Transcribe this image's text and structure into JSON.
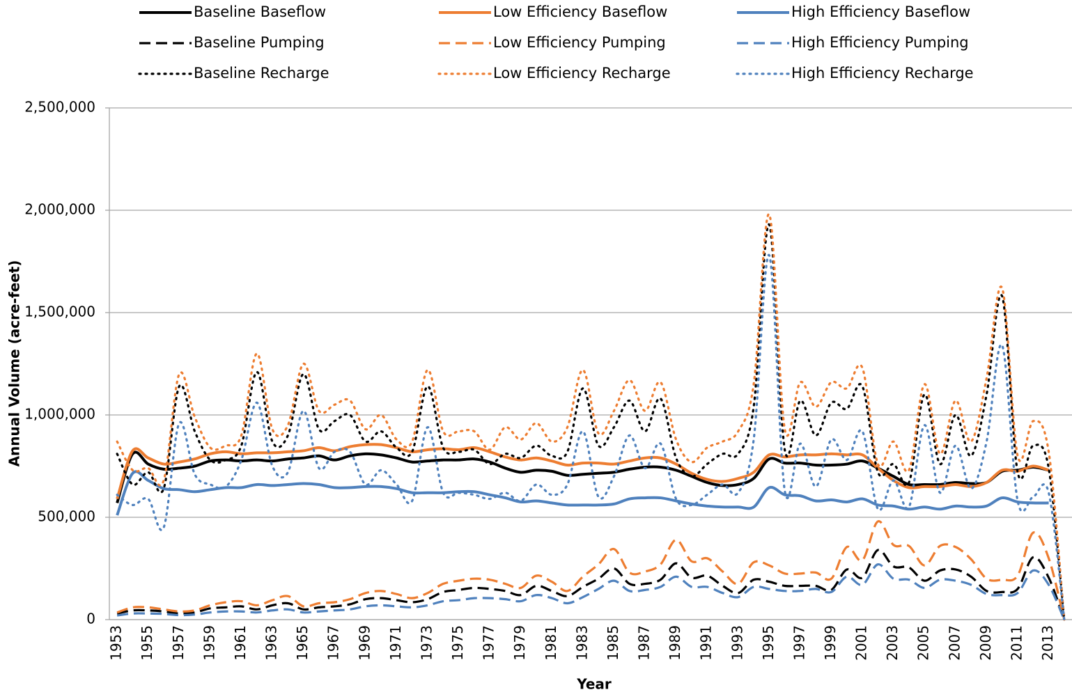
{
  "chart_data": {
    "type": "line",
    "y_label": "Annual Volume (acre-feet)",
    "x_label": "Year",
    "categories": [
      "1953",
      null,
      "1955",
      null,
      "1957",
      null,
      "1959",
      null,
      "1961",
      null,
      "1963",
      null,
      "1965",
      null,
      "1967",
      null,
      "1969",
      null,
      "1971",
      null,
      "1973",
      null,
      "1975",
      null,
      "1977",
      null,
      "1979",
      null,
      "1981",
      null,
      "1983",
      null,
      "1985",
      null,
      "1987",
      null,
      "1989",
      null,
      "1991",
      null,
      "1993",
      null,
      "1995",
      null,
      "1997",
      null,
      "1999",
      null,
      "2001",
      null,
      "2003",
      null,
      "2005",
      null,
      "2007",
      null,
      "2009",
      null,
      "2011",
      null,
      "2013",
      null
    ],
    "ylim": [
      0,
      2500000
    ],
    "yticks": [
      0,
      {
        "value": 500000,
        "label": "500,000"
      },
      {
        "value": 1000000,
        "label": "1,000,000"
      },
      {
        "value": 1500000,
        "label": "1,500,000"
      },
      {
        "value": 2000000,
        "label": "2,000,000"
      },
      {
        "value": 2500000,
        "label": "2,500,000"
      }
    ],
    "grid": true,
    "legend": "top",
    "series": [
      {
        "name": "Baseline Baseflow",
        "color": "#000000",
        "style": "solid",
        "values": [
          570000,
          810000,
          760000,
          735000,
          740000,
          750000,
          775000,
          780000,
          775000,
          780000,
          775000,
          785000,
          790000,
          800000,
          780000,
          800000,
          810000,
          805000,
          790000,
          770000,
          775000,
          780000,
          780000,
          785000,
          770000,
          740000,
          720000,
          730000,
          725000,
          705000,
          710000,
          715000,
          720000,
          735000,
          745000,
          745000,
          730000,
          700000,
          670000,
          655000,
          660000,
          690000,
          785000,
          765000,
          765000,
          755000,
          755000,
          760000,
          775000,
          740000,
          700000,
          660000,
          660000,
          660000,
          670000,
          665000,
          670000,
          725000,
          730000,
          745000,
          730000,
          null
        ]
      },
      {
        "name": "Low Efficiency Baseflow",
        "color": "#ed7d31",
        "style": "solid",
        "values": [
          590000,
          825000,
          790000,
          760000,
          770000,
          785000,
          810000,
          820000,
          810000,
          815000,
          815000,
          820000,
          825000,
          840000,
          825000,
          845000,
          855000,
          855000,
          840000,
          820000,
          830000,
          835000,
          830000,
          840000,
          820000,
          795000,
          780000,
          790000,
          775000,
          755000,
          765000,
          765000,
          760000,
          775000,
          790000,
          790000,
          760000,
          715000,
          685000,
          675000,
          690000,
          720000,
          805000,
          795000,
          805000,
          805000,
          810000,
          805000,
          805000,
          740000,
          680000,
          645000,
          650000,
          650000,
          660000,
          650000,
          670000,
          730000,
          725000,
          750000,
          730000,
          null
        ]
      },
      {
        "name": "High Efficiency Baseflow",
        "color": "#4f81bd",
        "style": "solid",
        "values": [
          510000,
          715000,
          680000,
          640000,
          635000,
          625000,
          635000,
          645000,
          645000,
          660000,
          655000,
          660000,
          665000,
          660000,
          645000,
          645000,
          650000,
          650000,
          640000,
          620000,
          620000,
          620000,
          625000,
          625000,
          610000,
          595000,
          575000,
          580000,
          570000,
          560000,
          560000,
          560000,
          565000,
          590000,
          595000,
          595000,
          580000,
          565000,
          555000,
          550000,
          550000,
          550000,
          645000,
          610000,
          605000,
          580000,
          585000,
          575000,
          590000,
          560000,
          555000,
          540000,
          550000,
          540000,
          555000,
          550000,
          555000,
          595000,
          575000,
          570000,
          570000,
          null
        ]
      },
      {
        "name": "Baseline Pumping",
        "color": "#000000",
        "style": "dash",
        "values": [
          30000,
          45000,
          45000,
          40000,
          30000,
          35000,
          55000,
          60000,
          65000,
          50000,
          70000,
          80000,
          50000,
          60000,
          65000,
          75000,
          100000,
          105000,
          95000,
          85000,
          100000,
          135000,
          145000,
          155000,
          150000,
          140000,
          120000,
          165000,
          140000,
          115000,
          160000,
          200000,
          250000,
          175000,
          175000,
          195000,
          275000,
          205000,
          215000,
          165000,
          130000,
          195000,
          185000,
          165000,
          165000,
          165000,
          145000,
          245000,
          205000,
          340000,
          260000,
          255000,
          190000,
          240000,
          245000,
          210000,
          140000,
          135000,
          150000,
          305000,
          205000,
          0
        ]
      },
      {
        "name": "Low Efficiency Pumping",
        "color": "#ed7d31",
        "style": "dash",
        "values": [
          35000,
          60000,
          60000,
          50000,
          40000,
          45000,
          70000,
          85000,
          90000,
          70000,
          95000,
          115000,
          65000,
          80000,
          85000,
          100000,
          130000,
          140000,
          125000,
          105000,
          130000,
          175000,
          190000,
          200000,
          195000,
          175000,
          155000,
          215000,
          185000,
          140000,
          210000,
          270000,
          345000,
          230000,
          235000,
          270000,
          390000,
          285000,
          300000,
          235000,
          175000,
          280000,
          265000,
          225000,
          225000,
          230000,
          200000,
          355000,
          290000,
          480000,
          365000,
          360000,
          265000,
          360000,
          355000,
          295000,
          200000,
          195000,
          215000,
          425000,
          300000,
          0
        ]
      },
      {
        "name": "High Efficiency Pumping",
        "color": "#4f81bd",
        "style": "dash",
        "values": [
          20000,
          30000,
          30000,
          28000,
          22000,
          25000,
          35000,
          40000,
          40000,
          35000,
          45000,
          50000,
          35000,
          40000,
          45000,
          50000,
          65000,
          70000,
          65000,
          60000,
          70000,
          90000,
          95000,
          105000,
          105000,
          100000,
          90000,
          120000,
          105000,
          80000,
          110000,
          150000,
          190000,
          140000,
          145000,
          160000,
          210000,
          160000,
          160000,
          130000,
          110000,
          160000,
          150000,
          140000,
          140000,
          150000,
          135000,
          210000,
          170000,
          270000,
          200000,
          195000,
          155000,
          195000,
          190000,
          170000,
          125000,
          120000,
          130000,
          240000,
          170000,
          0
        ]
      },
      {
        "name": "Baseline Recharge",
        "color": "#000000",
        "style": "dot",
        "values": [
          810000,
          660000,
          720000,
          640000,
          1140000,
          920000,
          780000,
          780000,
          850000,
          1210000,
          870000,
          900000,
          1200000,
          930000,
          970000,
          1000000,
          870000,
          920000,
          840000,
          820000,
          1140000,
          840000,
          820000,
          830000,
          760000,
          810000,
          790000,
          850000,
          800000,
          820000,
          1130000,
          850000,
          940000,
          1070000,
          920000,
          1080000,
          790000,
          700000,
          760000,
          810000,
          810000,
          1040000,
          1930000,
          830000,
          1070000,
          900000,
          1060000,
          1030000,
          1140000,
          720000,
          760000,
          670000,
          1100000,
          760000,
          1000000,
          800000,
          1100000,
          1580000,
          720000,
          850000,
          740000,
          0
        ]
      },
      {
        "name": "Low Efficiency Recharge",
        "color": "#ed7d31",
        "style": "dot",
        "values": [
          870000,
          730000,
          740000,
          680000,
          1200000,
          990000,
          840000,
          850000,
          900000,
          1300000,
          930000,
          950000,
          1250000,
          1020000,
          1050000,
          1070000,
          930000,
          1000000,
          880000,
          870000,
          1220000,
          920000,
          920000,
          920000,
          830000,
          940000,
          880000,
          960000,
          870000,
          940000,
          1220000,
          910000,
          1020000,
          1170000,
          1020000,
          1160000,
          880000,
          770000,
          840000,
          870000,
          920000,
          1150000,
          1980000,
          930000,
          1160000,
          1040000,
          1160000,
          1130000,
          1230000,
          760000,
          870000,
          730000,
          1150000,
          810000,
          1070000,
          870000,
          1180000,
          1620000,
          800000,
          970000,
          820000,
          0
        ]
      },
      {
        "name": "High Efficiency Recharge",
        "color": "#4f81bd",
        "style": "dot",
        "values": [
          610000,
          560000,
          590000,
          450000,
          960000,
          710000,
          660000,
          650000,
          780000,
          1060000,
          750000,
          720000,
          1020000,
          740000,
          820000,
          820000,
          660000,
          730000,
          660000,
          580000,
          940000,
          620000,
          620000,
          610000,
          590000,
          620000,
          580000,
          660000,
          610000,
          660000,
          920000,
          600000,
          700000,
          900000,
          740000,
          860000,
          590000,
          560000,
          610000,
          660000,
          620000,
          880000,
          1780000,
          630000,
          860000,
          650000,
          880000,
          780000,
          920000,
          540000,
          680000,
          550000,
          950000,
          620000,
          850000,
          640000,
          870000,
          1340000,
          580000,
          600000,
          620000,
          0
        ]
      }
    ]
  }
}
